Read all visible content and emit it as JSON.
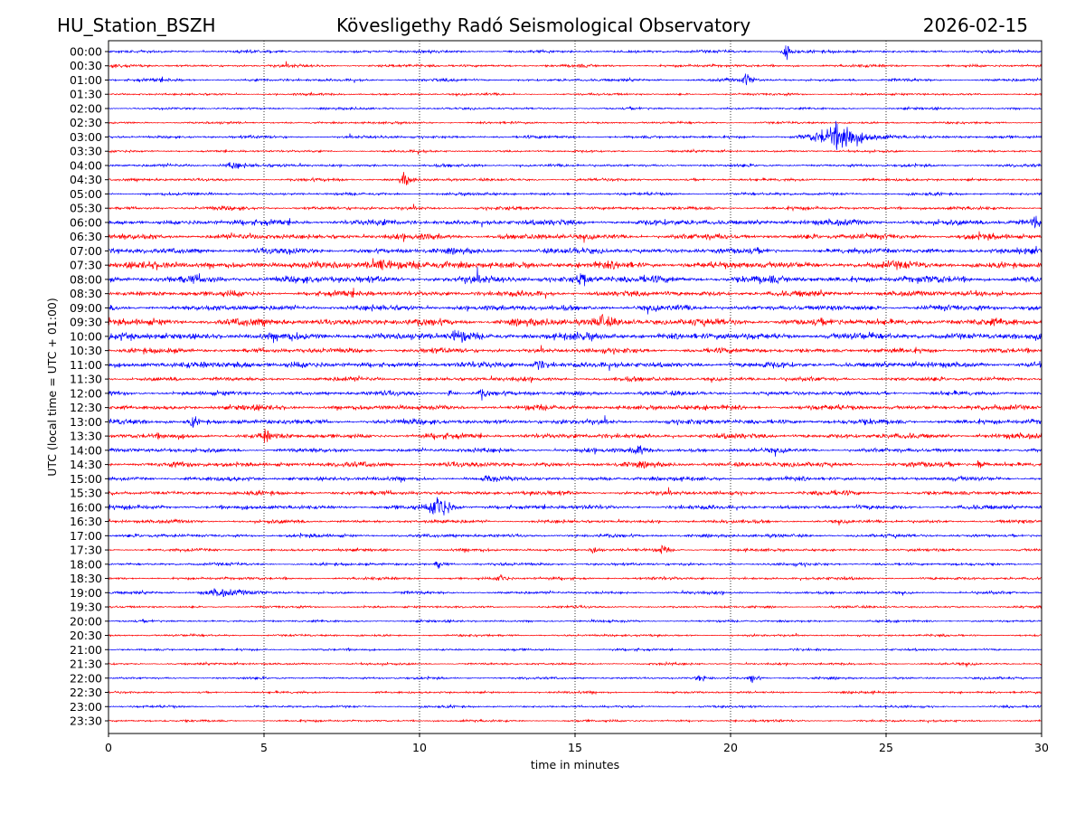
{
  "header": {
    "station": "HU_Station_BSZH",
    "observatory": "Kövesligethy Radó Seismological Observatory",
    "date": "2026-02-15"
  },
  "chart_data": {
    "type": "line",
    "subtype": "helicorder",
    "xlabel": "time in minutes",
    "ylabel": "UTC (local time = UTC + 01:00)",
    "xlim": [
      0,
      30
    ],
    "xticks": [
      "0",
      "5",
      "10",
      "15",
      "20",
      "25",
      "30"
    ],
    "grid": "vertical dotted at every 5 minutes",
    "colors": [
      "#0000ff",
      "#ff0000"
    ],
    "rows": [
      "00:00",
      "00:30",
      "01:00",
      "01:30",
      "02:00",
      "02:30",
      "03:00",
      "03:30",
      "04:00",
      "04:30",
      "05:00",
      "05:30",
      "06:00",
      "06:30",
      "07:00",
      "07:30",
      "08:00",
      "08:30",
      "09:00",
      "09:30",
      "10:00",
      "10:30",
      "11:00",
      "11:30",
      "12:00",
      "12:30",
      "13:00",
      "13:30",
      "14:00",
      "14:30",
      "15:00",
      "15:30",
      "16:00",
      "16:30",
      "17:00",
      "17:30",
      "18:00",
      "18:30",
      "19:00",
      "19:30",
      "20:00",
      "20:30",
      "21:00",
      "21:30",
      "22:00",
      "22:30",
      "23:00",
      "23:30"
    ],
    "noise_level": [
      1,
      1,
      1,
      0.8,
      0.8,
      0.8,
      1,
      0.8,
      1,
      1,
      1,
      1.2,
      2,
      2,
      2,
      2.5,
      2.5,
      2,
      2,
      2.5,
      2.5,
      1.8,
      2,
      1.5,
      1.5,
      1.8,
      1.8,
      1.8,
      1.5,
      1.8,
      1.5,
      1.5,
      1.5,
      1.2,
      1.2,
      1,
      1,
      1,
      1,
      0.8,
      0.8,
      0.8,
      0.8,
      0.8,
      0.8,
      0.8,
      0.8,
      0.8
    ],
    "events": [
      {
        "row": 0,
        "minute": 21.8,
        "amplitude": 8,
        "duration": 0.4
      },
      {
        "row": 2,
        "minute": 20.5,
        "amplitude": 6,
        "duration": 0.4
      },
      {
        "row": 6,
        "minute": 23.3,
        "amplitude": 10,
        "duration": 2.5
      },
      {
        "row": 6,
        "minute": 23.7,
        "amplitude": 16,
        "duration": 0.3
      },
      {
        "row": 8,
        "minute": 4.0,
        "amplitude": 3,
        "duration": 1.2
      },
      {
        "row": 9,
        "minute": 9.5,
        "amplitude": 6,
        "duration": 0.5
      },
      {
        "row": 12,
        "minute": 29.8,
        "amplitude": 5,
        "duration": 0.5
      },
      {
        "row": 15,
        "minute": 8.7,
        "amplitude": 6,
        "duration": 1.5
      },
      {
        "row": 16,
        "minute": 15.2,
        "amplitude": 5,
        "duration": 0.6
      },
      {
        "row": 19,
        "minute": 15.8,
        "amplitude": 5,
        "duration": 1
      },
      {
        "row": 20,
        "minute": 11.2,
        "amplitude": 5,
        "duration": 0.8
      },
      {
        "row": 22,
        "minute": 4.2,
        "amplitude": 4,
        "duration": 1
      },
      {
        "row": 22,
        "minute": 13.8,
        "amplitude": 4,
        "duration": 1
      },
      {
        "row": 24,
        "minute": 11.0,
        "amplitude": 4,
        "duration": 0.3
      },
      {
        "row": 24,
        "minute": 12.0,
        "amplitude": 4,
        "duration": 0.4
      },
      {
        "row": 26,
        "minute": 2.7,
        "amplitude": 4,
        "duration": 0.5
      },
      {
        "row": 27,
        "minute": 5.0,
        "amplitude": 5,
        "duration": 0.5
      },
      {
        "row": 28,
        "minute": 17.0,
        "amplitude": 5,
        "duration": 0.6
      },
      {
        "row": 29,
        "minute": 28.0,
        "amplitude": 5,
        "duration": 0.4
      },
      {
        "row": 30,
        "minute": 12.2,
        "amplitude": 4,
        "duration": 0.4
      },
      {
        "row": 32,
        "minute": 10.6,
        "amplitude": 14,
        "duration": 0.8
      },
      {
        "row": 35,
        "minute": 15.6,
        "amplitude": 4,
        "duration": 0.4
      },
      {
        "row": 35,
        "minute": 17.8,
        "amplitude": 4,
        "duration": 0.4
      },
      {
        "row": 36,
        "minute": 10.6,
        "amplitude": 4,
        "duration": 0.4
      },
      {
        "row": 37,
        "minute": 12.6,
        "amplitude": 5,
        "duration": 0.4
      },
      {
        "row": 38,
        "minute": 3.5,
        "amplitude": 3,
        "duration": 2
      },
      {
        "row": 44,
        "minute": 20.7,
        "amplitude": 4,
        "duration": 0.5
      },
      {
        "row": 44,
        "minute": 19.0,
        "amplitude": 3,
        "duration": 0.4
      }
    ]
  }
}
